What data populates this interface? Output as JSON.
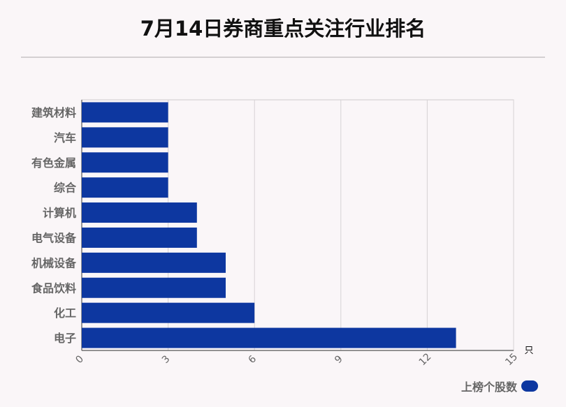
{
  "title": "7月14日券商重点关注行业排名",
  "chart_data": {
    "type": "bar",
    "orientation": "horizontal",
    "categories": [
      "建筑材料",
      "汽车",
      "有色金属",
      "综合",
      "计算机",
      "电气设备",
      "机械设备",
      "食品饮料",
      "化工",
      "电子"
    ],
    "series": [
      {
        "name": "上榜个股数",
        "values": [
          3,
          3,
          3,
          3,
          4,
          4,
          5,
          5,
          6,
          13
        ]
      }
    ],
    "xlim": [
      0,
      15
    ],
    "xticks": [
      "0",
      "3",
      "6",
      "9",
      "12",
      "15"
    ],
    "unit": "只",
    "grid": true,
    "legend_position": "bottom-right",
    "bar_color": "#0d37a0"
  }
}
